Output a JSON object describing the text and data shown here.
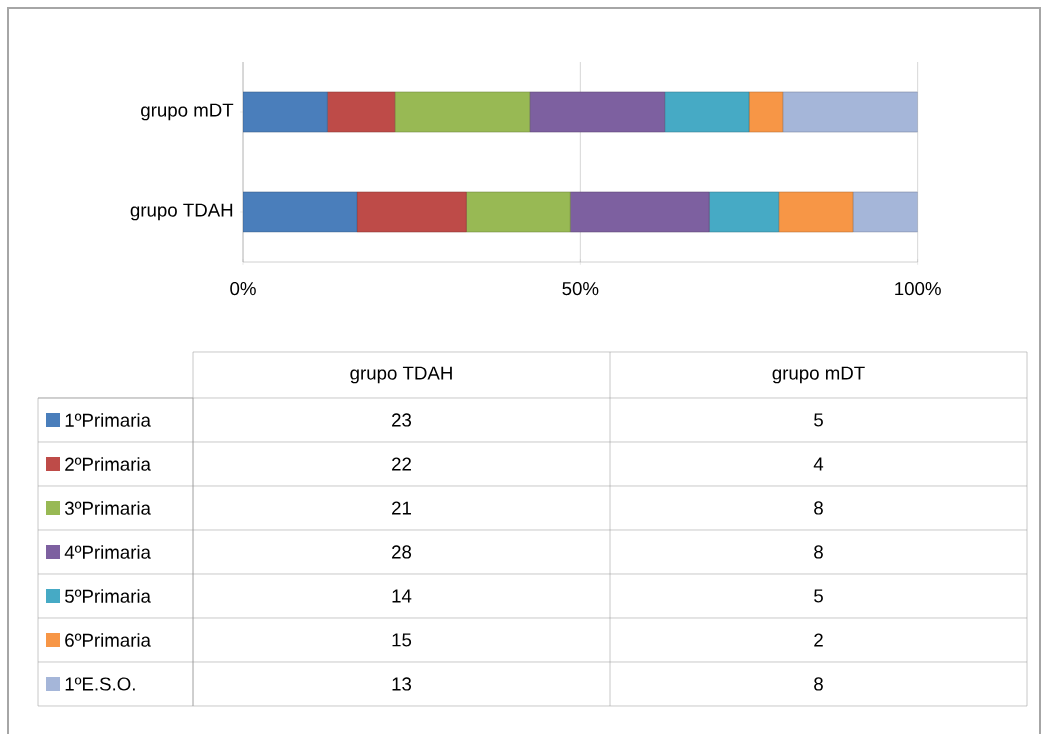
{
  "chart_data": {
    "type": "bar",
    "orientation": "horizontal",
    "stacked": true,
    "categories": [
      "grupo mDT",
      "grupo TDAH"
    ],
    "series": [
      {
        "name": "1ºPrimaria",
        "color": "#4a7ebb",
        "values": [
          12.5,
          16.9
        ]
      },
      {
        "name": "2ºPrimaria",
        "color": "#be4b48",
        "values": [
          10,
          16.2
        ]
      },
      {
        "name": "3ºPrimaria",
        "color": "#98b954",
        "values": [
          20,
          15.4
        ]
      },
      {
        "name": "4ºPrimaria",
        "color": "#7d60a0",
        "values": [
          20,
          20.6
        ]
      },
      {
        "name": "5ºPrimaria",
        "color": "#46aac5",
        "values": [
          12.5,
          10.3
        ]
      },
      {
        "name": "6ºPrimaria",
        "color": "#f79646",
        "values": [
          5,
          11.0
        ]
      },
      {
        "name": "1ºE.S.O.",
        "color": "#a5b6d9",
        "values": [
          20,
          9.6
        ]
      }
    ],
    "annotations": [
      "23",
      "5",
      "22",
      "4",
      "21",
      "8",
      "28",
      "8",
      "14",
      "5",
      "15",
      "2",
      "13",
      "8"
    ],
    "xlim": [
      0,
      100
    ],
    "xticks": [
      {
        "value": 0,
        "label": "0%"
      },
      {
        "value": 50,
        "label": "50%"
      },
      {
        "value": 100,
        "label": "100%"
      }
    ],
    "grid": "x",
    "legend": "bottom"
  }
}
